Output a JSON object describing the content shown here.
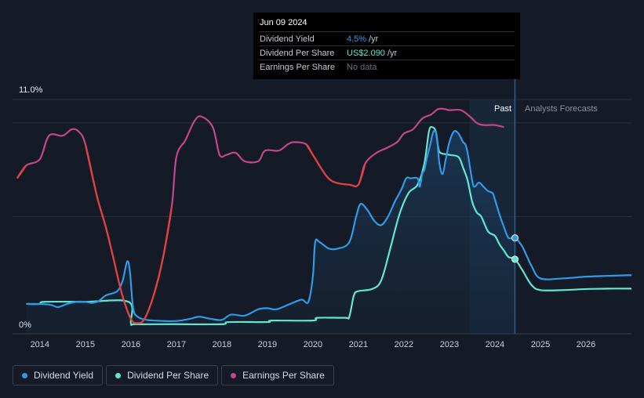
{
  "tooltip": {
    "date": "Jun 09 2024",
    "rows": [
      {
        "label": "Dividend Yield",
        "value": "4.5%",
        "unit": "/yr"
      },
      {
        "label": "Dividend Per Share",
        "value": "US$2.090",
        "unit": "/yr"
      },
      {
        "label": "Earnings Per Share",
        "value": "No data",
        "unit": ""
      }
    ]
  },
  "labels": {
    "past": "Past",
    "forecast": "Analysts Forecasts"
  },
  "legend": {
    "items": [
      {
        "label": "Dividend Yield",
        "color": "#2f9ae8"
      },
      {
        "label": "Dividend Per Share",
        "color": "#5fe8cf"
      },
      {
        "label": "Earnings Per Share",
        "color": "#c3468b"
      }
    ]
  },
  "chart_data": {
    "type": "line",
    "xlim": [
      2013.4,
      2027.0
    ],
    "ylim": [
      0,
      11.0
    ],
    "y_tick_labels": [
      "0%",
      "11.0%"
    ],
    "x_ticks": [
      2014,
      2015,
      2016,
      2017,
      2018,
      2019,
      2020,
      2021,
      2022,
      2023,
      2024,
      2025,
      2026
    ],
    "past_forecast_split": 2024.44,
    "series": [
      {
        "name": "Dividend Yield",
        "color": "#2f9ae8",
        "points": [
          [
            2013.7,
            1.4
          ],
          [
            2014.0,
            1.4
          ],
          [
            2014.25,
            1.35
          ],
          [
            2014.4,
            1.25
          ],
          [
            2014.6,
            1.4
          ],
          [
            2014.8,
            1.5
          ],
          [
            2015.0,
            1.5
          ],
          [
            2015.15,
            1.45
          ],
          [
            2015.3,
            1.55
          ],
          [
            2015.45,
            1.8
          ],
          [
            2015.7,
            2.0
          ],
          [
            2015.82,
            2.5
          ],
          [
            2015.92,
            3.4
          ],
          [
            2015.98,
            2.9
          ],
          [
            2016.05,
            1.2
          ],
          [
            2016.15,
            0.8
          ],
          [
            2016.35,
            0.65
          ],
          [
            2016.7,
            0.6
          ],
          [
            2017.0,
            0.6
          ],
          [
            2017.3,
            0.7
          ],
          [
            2017.5,
            0.8
          ],
          [
            2017.75,
            0.7
          ],
          [
            2018.0,
            0.65
          ],
          [
            2018.2,
            0.9
          ],
          [
            2018.5,
            0.85
          ],
          [
            2018.8,
            1.15
          ],
          [
            2019.0,
            1.2
          ],
          [
            2019.2,
            1.15
          ],
          [
            2019.5,
            1.4
          ],
          [
            2019.75,
            1.6
          ],
          [
            2019.9,
            1.5
          ],
          [
            2020.0,
            2.7
          ],
          [
            2020.05,
            4.3
          ],
          [
            2020.15,
            4.3
          ],
          [
            2020.35,
            4.0
          ],
          [
            2020.55,
            4.0
          ],
          [
            2020.8,
            4.3
          ],
          [
            2020.95,
            5.5
          ],
          [
            2021.05,
            6.1
          ],
          [
            2021.2,
            5.8
          ],
          [
            2021.35,
            5.3
          ],
          [
            2021.5,
            5.1
          ],
          [
            2021.65,
            5.5
          ],
          [
            2021.8,
            6.2
          ],
          [
            2021.95,
            6.8
          ],
          [
            2022.05,
            7.3
          ],
          [
            2022.15,
            7.3
          ],
          [
            2022.3,
            7.3
          ],
          [
            2022.35,
            6.9
          ],
          [
            2022.4,
            7.5
          ],
          [
            2022.45,
            7.7
          ],
          [
            2022.5,
            8.2
          ],
          [
            2022.58,
            8.9
          ],
          [
            2022.65,
            9.5
          ],
          [
            2022.72,
            9.3
          ],
          [
            2022.78,
            8.0
          ],
          [
            2022.85,
            7.5
          ],
          [
            2022.92,
            8.2
          ],
          [
            2023.0,
            9.0
          ],
          [
            2023.1,
            9.5
          ],
          [
            2023.2,
            9.4
          ],
          [
            2023.3,
            9.0
          ],
          [
            2023.35,
            8.9
          ],
          [
            2023.4,
            8.5
          ],
          [
            2023.5,
            7.2
          ],
          [
            2023.55,
            6.9
          ],
          [
            2023.65,
            7.1
          ],
          [
            2023.75,
            6.9
          ],
          [
            2023.85,
            6.7
          ],
          [
            2023.95,
            6.6
          ],
          [
            2024.0,
            6.3
          ],
          [
            2024.1,
            5.6
          ],
          [
            2024.2,
            5.0
          ],
          [
            2024.3,
            4.5
          ],
          [
            2024.44,
            4.5
          ],
          [
            2024.6,
            4.1
          ],
          [
            2024.8,
            3.2
          ],
          [
            2025.0,
            2.6
          ],
          [
            2025.5,
            2.6
          ],
          [
            2026.0,
            2.68
          ],
          [
            2026.5,
            2.72
          ],
          [
            2027.0,
            2.75
          ]
        ]
      },
      {
        "name": "Dividend Per Share",
        "color": "#5fe8cf",
        "points": [
          [
            2013.7,
            1.4
          ],
          [
            2014.0,
            1.4
          ],
          [
            2014.1,
            1.5
          ],
          [
            2015.0,
            1.5
          ],
          [
            2015.95,
            1.5
          ],
          [
            2016.0,
            0.5
          ],
          [
            2016.1,
            0.45
          ],
          [
            2016.8,
            0.45
          ],
          [
            2017.0,
            0.45
          ],
          [
            2018.0,
            0.45
          ],
          [
            2018.15,
            0.55
          ],
          [
            2019.0,
            0.55
          ],
          [
            2019.1,
            0.62
          ],
          [
            2020.0,
            0.62
          ],
          [
            2020.1,
            0.75
          ],
          [
            2020.7,
            0.75
          ],
          [
            2020.8,
            0.8
          ],
          [
            2020.9,
            1.8
          ],
          [
            2021.0,
            2.0
          ],
          [
            2021.3,
            2.1
          ],
          [
            2021.5,
            2.5
          ],
          [
            2021.7,
            4.0
          ],
          [
            2021.9,
            5.6
          ],
          [
            2022.1,
            6.6
          ],
          [
            2022.3,
            7.0
          ],
          [
            2022.45,
            8.0
          ],
          [
            2022.55,
            9.5
          ],
          [
            2022.62,
            9.7
          ],
          [
            2022.7,
            9.5
          ],
          [
            2022.75,
            8.8
          ],
          [
            2022.8,
            8.5
          ],
          [
            2023.0,
            8.4
          ],
          [
            2023.2,
            8.3
          ],
          [
            2023.3,
            7.8
          ],
          [
            2023.4,
            7.2
          ],
          [
            2023.5,
            6.2
          ],
          [
            2023.6,
            5.7
          ],
          [
            2023.7,
            5.5
          ],
          [
            2023.85,
            4.8
          ],
          [
            2024.0,
            4.6
          ],
          [
            2024.1,
            4.2
          ],
          [
            2024.2,
            3.9
          ],
          [
            2024.3,
            3.6
          ],
          [
            2024.44,
            3.5
          ],
          [
            2024.6,
            3.0
          ],
          [
            2024.8,
            2.3
          ],
          [
            2025.0,
            2.05
          ],
          [
            2025.5,
            2.05
          ],
          [
            2026.0,
            2.1
          ],
          [
            2026.5,
            2.12
          ],
          [
            2027.0,
            2.12
          ]
        ]
      },
      {
        "name": "Earnings Per Share",
        "color": "#c3468b",
        "points": [
          [
            2013.5,
            7.3
          ],
          [
            2013.7,
            7.9
          ],
          [
            2014.0,
            8.2
          ],
          [
            2014.2,
            9.3
          ],
          [
            2014.5,
            9.3
          ],
          [
            2014.7,
            9.6
          ],
          [
            2014.85,
            9.5
          ],
          [
            2015.0,
            8.9
          ],
          [
            2015.25,
            6.5
          ],
          [
            2015.45,
            5.0
          ],
          [
            2015.6,
            3.7
          ],
          [
            2015.8,
            1.9
          ],
          [
            2016.0,
            0.7
          ],
          [
            2016.15,
            0.5
          ],
          [
            2016.3,
            0.7
          ],
          [
            2016.5,
            1.8
          ],
          [
            2016.7,
            3.5
          ],
          [
            2016.9,
            6.0
          ],
          [
            2017.0,
            8.3
          ],
          [
            2017.2,
            9.1
          ],
          [
            2017.4,
            10.0
          ],
          [
            2017.55,
            10.2
          ],
          [
            2017.8,
            9.7
          ],
          [
            2017.95,
            8.4
          ],
          [
            2018.1,
            8.4
          ],
          [
            2018.3,
            8.5
          ],
          [
            2018.5,
            8.1
          ],
          [
            2018.8,
            8.1
          ],
          [
            2018.95,
            8.6
          ],
          [
            2019.25,
            8.6
          ],
          [
            2019.45,
            8.9
          ],
          [
            2019.6,
            9.0
          ],
          [
            2019.85,
            8.9
          ],
          [
            2020.0,
            8.4
          ],
          [
            2020.3,
            7.4
          ],
          [
            2020.5,
            7.1
          ],
          [
            2020.8,
            7.0
          ],
          [
            2021.0,
            7.0
          ],
          [
            2021.15,
            8.0
          ],
          [
            2021.4,
            8.5
          ],
          [
            2021.6,
            8.7
          ],
          [
            2021.85,
            9.0
          ],
          [
            2022.0,
            9.4
          ],
          [
            2022.2,
            9.6
          ],
          [
            2022.4,
            10.1
          ],
          [
            2022.6,
            10.3
          ],
          [
            2022.75,
            10.55
          ],
          [
            2022.9,
            10.55
          ],
          [
            2023.0,
            10.5
          ],
          [
            2023.25,
            10.5
          ],
          [
            2023.45,
            10.2
          ],
          [
            2023.6,
            9.9
          ],
          [
            2023.75,
            9.8
          ],
          [
            2024.0,
            9.8
          ],
          [
            2024.2,
            9.7
          ]
        ]
      }
    ],
    "highlight_points": [
      {
        "series": "Dividend Yield",
        "x": 2024.44,
        "y": 4.5
      },
      {
        "series": "Dividend Per Share",
        "x": 2024.44,
        "y": 3.5
      }
    ]
  }
}
